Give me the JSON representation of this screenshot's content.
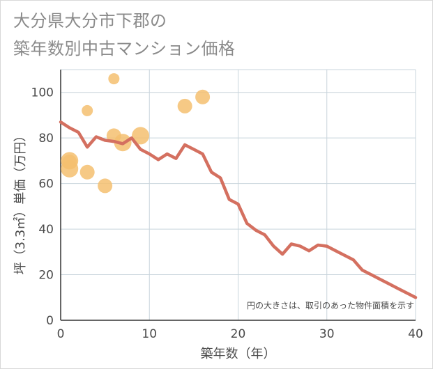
{
  "title_line1": "大分県大分市下郡の",
  "title_line2": "築年数別中古マンション価格",
  "chart_data": {
    "type": "scatter",
    "xlabel": "築年数（年）",
    "ylabel": "坪（3.3㎡）単価（万円）",
    "xlim": [
      0,
      40
    ],
    "ylim": [
      0,
      110
    ],
    "x_ticks": [
      "0",
      "10",
      "20",
      "30",
      "40"
    ],
    "y_ticks": [
      "0",
      "20",
      "40",
      "60",
      "80",
      "100"
    ],
    "grid": true,
    "note": "円の大きさは、取引のあった物件面積を示す",
    "colors": {
      "bubble": "#f5c070",
      "line": "#d47060",
      "grid": "#c8d4dc",
      "axis": "#333333"
    },
    "scatter": [
      {
        "x": 1,
        "y": 66.5,
        "size": 3
      },
      {
        "x": 1,
        "y": 70,
        "size": 3
      },
      {
        "x": 1,
        "y": 69.5,
        "size": 2
      },
      {
        "x": 3,
        "y": 92,
        "size": 1
      },
      {
        "x": 3,
        "y": 65,
        "size": 2
      },
      {
        "x": 5,
        "y": 59,
        "size": 2
      },
      {
        "x": 6,
        "y": 106,
        "size": 1
      },
      {
        "x": 6,
        "y": 81,
        "size": 2
      },
      {
        "x": 7,
        "y": 78,
        "size": 3
      },
      {
        "x": 9,
        "y": 81,
        "size": 3
      },
      {
        "x": 14,
        "y": 94,
        "size": 2
      },
      {
        "x": 16,
        "y": 98,
        "size": 2
      }
    ],
    "line": {
      "x": [
        0,
        1,
        2,
        3,
        4,
        5,
        6,
        7,
        8,
        9,
        10,
        11,
        12,
        13,
        14,
        15,
        16,
        17,
        18,
        19,
        20,
        21,
        22,
        23,
        24,
        25,
        26,
        27,
        28,
        29,
        30,
        31,
        32,
        33,
        34,
        35,
        36,
        37,
        38,
        39,
        40
      ],
      "y": [
        87,
        84.5,
        82.5,
        76,
        80.5,
        79,
        78.5,
        77.5,
        80,
        75,
        73,
        70.5,
        73,
        71,
        77,
        75,
        73,
        65,
        62.5,
        53,
        51,
        42.5,
        39.5,
        37.5,
        32.5,
        29,
        33.5,
        32.5,
        30.5,
        33,
        32.5,
        30.5,
        28.5,
        26.5,
        22,
        20,
        18,
        16,
        14,
        12,
        10
      ]
    }
  }
}
